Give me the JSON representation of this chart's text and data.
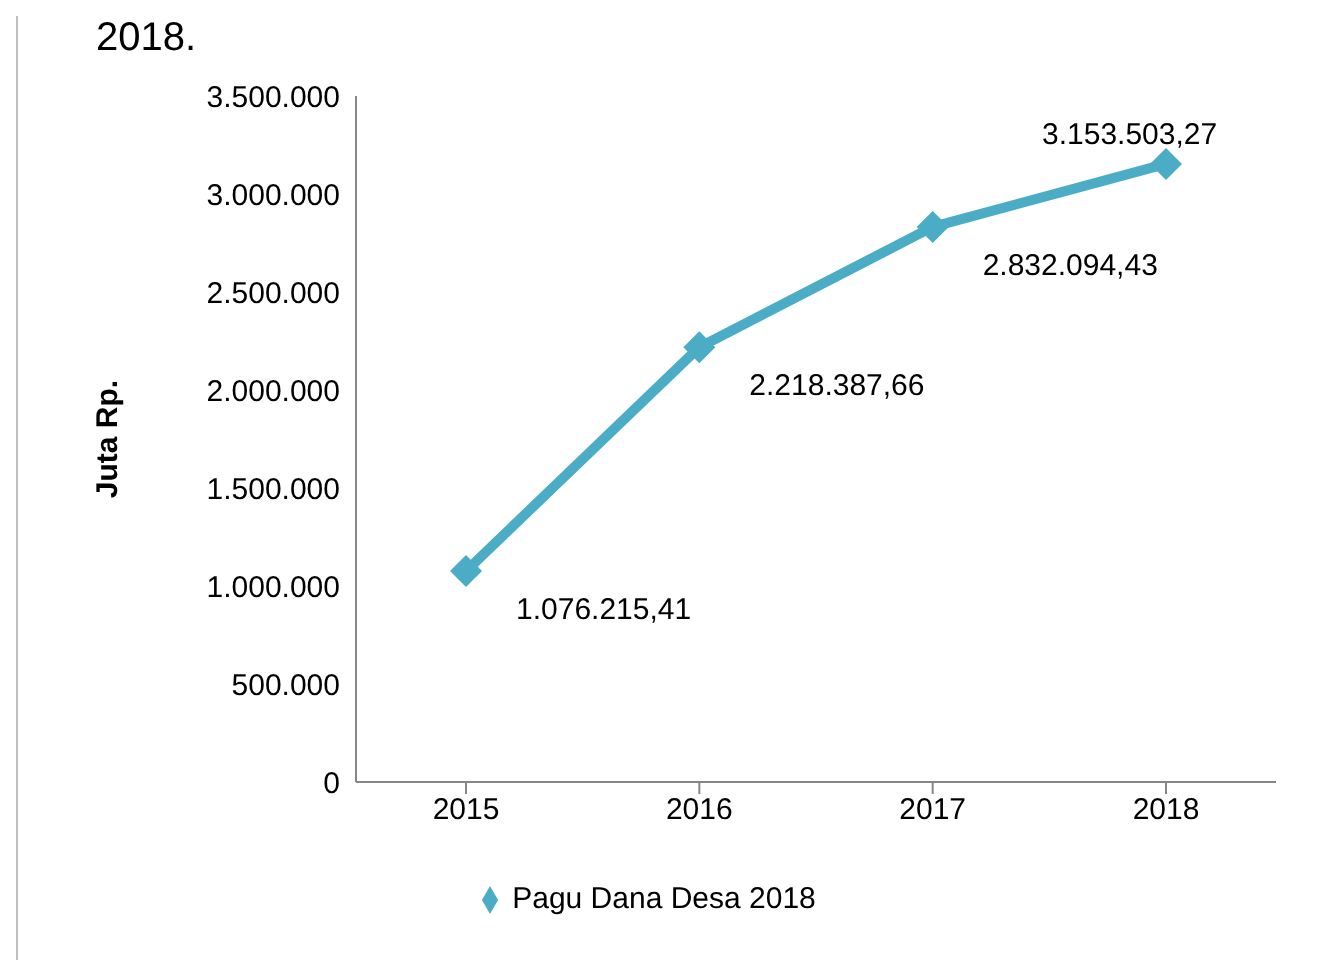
{
  "chart_data": {
    "type": "line",
    "ylabel": "Juta Rp.",
    "annotations": [
      "2018."
    ],
    "categories": [
      "2015",
      "2016",
      "2017",
      "2018"
    ],
    "series": [
      {
        "name": "Pagu Dana Desa 2018",
        "color": "#4bacc6",
        "values": [
          1076215.41,
          2218387.66,
          2832094.43,
          3153503.27
        ],
        "value_labels": [
          "1.076.215,41",
          "2.218.387,66",
          "2.832.094,43",
          "3.153.503,27"
        ]
      }
    ],
    "ylim": [
      0,
      3500000
    ],
    "yticks": [
      {
        "value": 0,
        "label": "0"
      },
      {
        "value": 500000,
        "label": "500.000"
      },
      {
        "value": 1000000,
        "label": "1.000.000"
      },
      {
        "value": 1500000,
        "label": "1.500.000"
      },
      {
        "value": 2000000,
        "label": "2.000.000"
      },
      {
        "value": 2500000,
        "label": "2.500.000"
      },
      {
        "value": 3000000,
        "label": "3.000.000"
      },
      {
        "value": 3500000,
        "label": "3.500.000"
      }
    ],
    "grid": false,
    "legend": "bottom",
    "marker": "diamond",
    "line_style": "solid"
  }
}
